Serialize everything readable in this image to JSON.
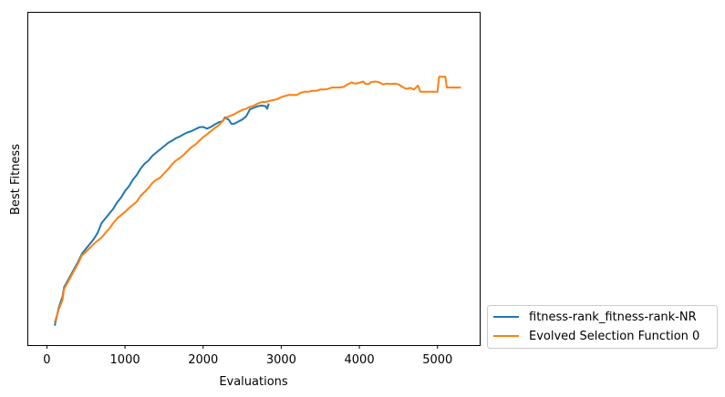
{
  "chart_data": {
    "type": "line",
    "title": "",
    "xlabel": "Evaluations",
    "ylabel": "Best Fitness",
    "xlim": [
      -250,
      5540
    ],
    "ylim": [
      0,
      1
    ],
    "x_ticks": [
      0,
      1000,
      2000,
      3000,
      4000,
      5000
    ],
    "x_tick_labels": [
      "0",
      "1000",
      "2000",
      "3000",
      "4000",
      "5000"
    ],
    "y_ticks": [],
    "grid": false,
    "legend_position": "outside-bottom-right",
    "colors": {
      "series_0": "#1f77b4",
      "series_1": "#ff7f0e"
    },
    "series": [
      {
        "name": "fitness-rank_fitness-rank-NR",
        "color": "#1f77b4",
        "points": [
          [
            100,
            0.035
          ],
          [
            150,
            0.09
          ],
          [
            200,
            0.125
          ],
          [
            220,
            0.155
          ],
          [
            300,
            0.19
          ],
          [
            400,
            0.235
          ],
          [
            450,
            0.26
          ],
          [
            500,
            0.275
          ],
          [
            600,
            0.305
          ],
          [
            650,
            0.325
          ],
          [
            700,
            0.355
          ],
          [
            750,
            0.37
          ],
          [
            800,
            0.385
          ],
          [
            850,
            0.4
          ],
          [
            900,
            0.42
          ],
          [
            950,
            0.435
          ],
          [
            1000,
            0.455
          ],
          [
            1050,
            0.47
          ],
          [
            1100,
            0.49
          ],
          [
            1150,
            0.505
          ],
          [
            1200,
            0.525
          ],
          [
            1250,
            0.54
          ],
          [
            1300,
            0.55
          ],
          [
            1350,
            0.565
          ],
          [
            1400,
            0.575
          ],
          [
            1450,
            0.585
          ],
          [
            1500,
            0.595
          ],
          [
            1550,
            0.605
          ],
          [
            1600,
            0.612
          ],
          [
            1650,
            0.62
          ],
          [
            1700,
            0.625
          ],
          [
            1750,
            0.632
          ],
          [
            1800,
            0.638
          ],
          [
            1850,
            0.642
          ],
          [
            1900,
            0.648
          ],
          [
            1950,
            0.654
          ],
          [
            2000,
            0.655
          ],
          [
            2050,
            0.65
          ],
          [
            2100,
            0.655
          ],
          [
            2150,
            0.663
          ],
          [
            2200,
            0.67
          ],
          [
            2250,
            0.673
          ],
          [
            2280,
            0.685
          ],
          [
            2330,
            0.677
          ],
          [
            2360,
            0.665
          ],
          [
            2400,
            0.665
          ],
          [
            2450,
            0.672
          ],
          [
            2500,
            0.678
          ],
          [
            2550,
            0.688
          ],
          [
            2600,
            0.71
          ],
          [
            2650,
            0.715
          ],
          [
            2700,
            0.72
          ],
          [
            2750,
            0.722
          ],
          [
            2800,
            0.72
          ],
          [
            2820,
            0.712
          ],
          [
            2840,
            0.728
          ]
        ]
      },
      {
        "name": "Evolved Selection Function 0",
        "color": "#ff7f0e",
        "points": [
          [
            100,
            0.045
          ],
          [
            150,
            0.085
          ],
          [
            200,
            0.115
          ],
          [
            220,
            0.15
          ],
          [
            300,
            0.185
          ],
          [
            400,
            0.23
          ],
          [
            450,
            0.255
          ],
          [
            500,
            0.265
          ],
          [
            600,
            0.29
          ],
          [
            700,
            0.31
          ],
          [
            750,
            0.325
          ],
          [
            800,
            0.338
          ],
          [
            850,
            0.355
          ],
          [
            900,
            0.37
          ],
          [
            950,
            0.38
          ],
          [
            1000,
            0.39
          ],
          [
            1050,
            0.402
          ],
          [
            1100,
            0.412
          ],
          [
            1150,
            0.422
          ],
          [
            1200,
            0.44
          ],
          [
            1250,
            0.452
          ],
          [
            1300,
            0.465
          ],
          [
            1350,
            0.48
          ],
          [
            1400,
            0.49
          ],
          [
            1450,
            0.497
          ],
          [
            1500,
            0.51
          ],
          [
            1550,
            0.523
          ],
          [
            1600,
            0.538
          ],
          [
            1650,
            0.55
          ],
          [
            1700,
            0.558
          ],
          [
            1750,
            0.568
          ],
          [
            1800,
            0.58
          ],
          [
            1850,
            0.592
          ],
          [
            1900,
            0.6
          ],
          [
            1950,
            0.612
          ],
          [
            2000,
            0.623
          ],
          [
            2050,
            0.632
          ],
          [
            2100,
            0.642
          ],
          [
            2150,
            0.652
          ],
          [
            2200,
            0.66
          ],
          [
            2250,
            0.675
          ],
          [
            2300,
            0.685
          ],
          [
            2350,
            0.69
          ],
          [
            2400,
            0.695
          ],
          [
            2450,
            0.702
          ],
          [
            2500,
            0.708
          ],
          [
            2550,
            0.712
          ],
          [
            2600,
            0.718
          ],
          [
            2650,
            0.722
          ],
          [
            2700,
            0.728
          ],
          [
            2750,
            0.733
          ],
          [
            2800,
            0.733
          ],
          [
            2850,
            0.736
          ],
          [
            2900,
            0.739
          ],
          [
            2950,
            0.742
          ],
          [
            3000,
            0.748
          ],
          [
            3050,
            0.752
          ],
          [
            3100,
            0.755
          ],
          [
            3150,
            0.755
          ],
          [
            3200,
            0.755
          ],
          [
            3250,
            0.762
          ],
          [
            3300,
            0.765
          ],
          [
            3350,
            0.765
          ],
          [
            3400,
            0.768
          ],
          [
            3450,
            0.768
          ],
          [
            3500,
            0.772
          ],
          [
            3550,
            0.772
          ],
          [
            3600,
            0.774
          ],
          [
            3650,
            0.778
          ],
          [
            3700,
            0.778
          ],
          [
            3750,
            0.778
          ],
          [
            3800,
            0.78
          ],
          [
            3850,
            0.788
          ],
          [
            3900,
            0.794
          ],
          [
            3950,
            0.79
          ],
          [
            4000,
            0.793
          ],
          [
            4050,
            0.797
          ],
          [
            4080,
            0.789
          ],
          [
            4120,
            0.789
          ],
          [
            4150,
            0.795
          ],
          [
            4200,
            0.797
          ],
          [
            4250,
            0.795
          ],
          [
            4300,
            0.788
          ],
          [
            4350,
            0.79
          ],
          [
            4400,
            0.789
          ],
          [
            4450,
            0.79
          ],
          [
            4500,
            0.788
          ],
          [
            4550,
            0.78
          ],
          [
            4600,
            0.774
          ],
          [
            4650,
            0.777
          ],
          [
            4700,
            0.772
          ],
          [
            4750,
            0.784
          ],
          [
            4780,
            0.765
          ],
          [
            4800,
            0.765
          ],
          [
            4850,
            0.765
          ],
          [
            4900,
            0.765
          ],
          [
            4950,
            0.765
          ],
          [
            5000,
            0.765
          ],
          [
            5020,
            0.812
          ],
          [
            5050,
            0.812
          ],
          [
            5100,
            0.812
          ],
          [
            5120,
            0.778
          ],
          [
            5150,
            0.778
          ],
          [
            5200,
            0.778
          ],
          [
            5250,
            0.778
          ],
          [
            5300,
            0.778
          ]
        ]
      }
    ]
  }
}
